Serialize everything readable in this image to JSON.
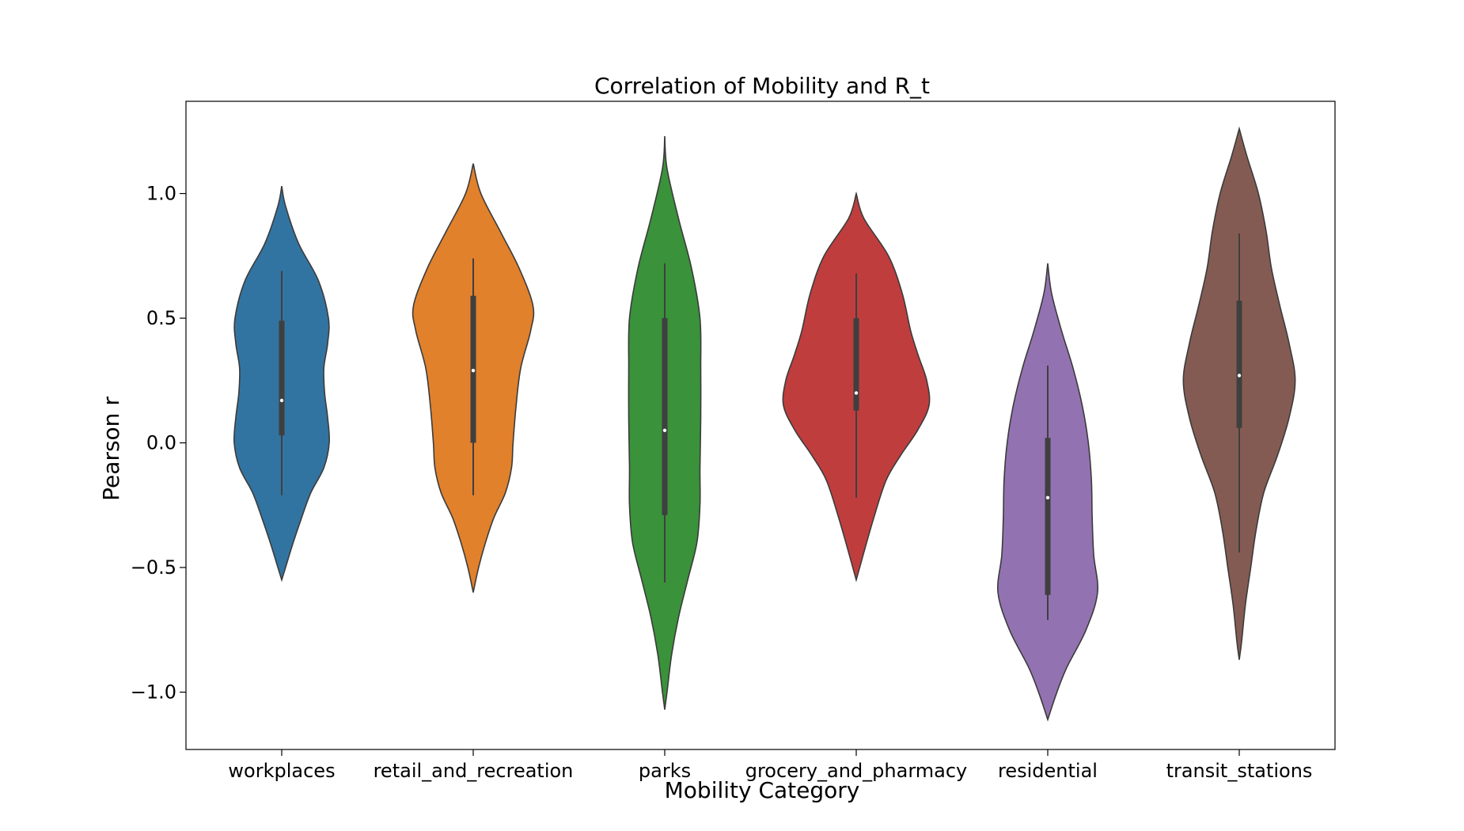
{
  "chart_data": {
    "type": "violin",
    "title": "Correlation of Mobility and R_t",
    "xlabel": "Mobility Category",
    "ylabel": "Pearson r",
    "ylim": [
      -1.23,
      1.37
    ],
    "yticks": [
      1.0,
      0.5,
      0.0,
      -0.5,
      -1.0
    ],
    "ytick_labels": [
      "1.0",
      "0.5",
      "0.0",
      "−0.5",
      "−1.0"
    ],
    "grid": false,
    "categories": [
      "workplaces",
      "retail_and_recreation",
      "parks",
      "grocery_and_pharmacy",
      "residential",
      "transit_stations"
    ],
    "series": [
      {
        "category": "workplaces",
        "color": "#3274a1",
        "density": [
          [
            1.03,
            0
          ],
          [
            0.95,
            0.05
          ],
          [
            0.8,
            0.22
          ],
          [
            0.65,
            0.48
          ],
          [
            0.5,
            0.61
          ],
          [
            0.4,
            0.6
          ],
          [
            0.3,
            0.55
          ],
          [
            0.2,
            0.56
          ],
          [
            0.1,
            0.6
          ],
          [
            0.0,
            0.62
          ],
          [
            -0.1,
            0.55
          ],
          [
            -0.2,
            0.38
          ],
          [
            -0.3,
            0.26
          ],
          [
            -0.4,
            0.15
          ],
          [
            -0.5,
            0.05
          ],
          [
            -0.55,
            0
          ]
        ],
        "whisker": [
          -0.21,
          0.69
        ],
        "box": [
          0.03,
          0.49
        ],
        "median": 0.17
      },
      {
        "category": "retail_and_recreation",
        "color": "#e1812c",
        "density": [
          [
            1.12,
            0
          ],
          [
            1.0,
            0.1
          ],
          [
            0.85,
            0.35
          ],
          [
            0.7,
            0.6
          ],
          [
            0.55,
            0.78
          ],
          [
            0.45,
            0.75
          ],
          [
            0.3,
            0.62
          ],
          [
            0.15,
            0.56
          ],
          [
            0.0,
            0.52
          ],
          [
            -0.1,
            0.5
          ],
          [
            -0.2,
            0.42
          ],
          [
            -0.3,
            0.27
          ],
          [
            -0.4,
            0.16
          ],
          [
            -0.5,
            0.07
          ],
          [
            -0.6,
            0
          ]
        ],
        "whisker": [
          -0.21,
          0.74
        ],
        "box": [
          0.0,
          0.59
        ],
        "median": 0.29
      },
      {
        "category": "parks",
        "color": "#3a923a",
        "density": [
          [
            1.23,
            0
          ],
          [
            1.1,
            0.03
          ],
          [
            0.9,
            0.18
          ],
          [
            0.7,
            0.35
          ],
          [
            0.5,
            0.46
          ],
          [
            0.3,
            0.47
          ],
          [
            0.1,
            0.47
          ],
          [
            -0.1,
            0.46
          ],
          [
            -0.25,
            0.46
          ],
          [
            -0.4,
            0.42
          ],
          [
            -0.55,
            0.3
          ],
          [
            -0.7,
            0.18
          ],
          [
            -0.85,
            0.09
          ],
          [
            -1.0,
            0.03
          ],
          [
            -1.07,
            0
          ]
        ],
        "whisker": [
          -0.56,
          0.72
        ],
        "box": [
          -0.29,
          0.5
        ],
        "median": 0.05
      },
      {
        "category": "grocery_and_pharmacy",
        "color": "#c03d3e",
        "density": [
          [
            1.0,
            0
          ],
          [
            0.9,
            0.1
          ],
          [
            0.75,
            0.42
          ],
          [
            0.6,
            0.6
          ],
          [
            0.45,
            0.71
          ],
          [
            0.35,
            0.81
          ],
          [
            0.25,
            0.92
          ],
          [
            0.15,
            0.95
          ],
          [
            0.05,
            0.8
          ],
          [
            -0.05,
            0.58
          ],
          [
            -0.15,
            0.39
          ],
          [
            -0.3,
            0.23
          ],
          [
            -0.45,
            0.09
          ],
          [
            -0.55,
            0
          ]
        ],
        "whisker": [
          -0.22,
          0.68
        ],
        "box": [
          0.13,
          0.5
        ],
        "median": 0.2
      },
      {
        "category": "residential",
        "color": "#9372b2",
        "density": [
          [
            0.72,
            0
          ],
          [
            0.6,
            0.05
          ],
          [
            0.45,
            0.18
          ],
          [
            0.3,
            0.33
          ],
          [
            0.15,
            0.45
          ],
          [
            0.0,
            0.53
          ],
          [
            -0.15,
            0.57
          ],
          [
            -0.3,
            0.58
          ],
          [
            -0.45,
            0.6
          ],
          [
            -0.6,
            0.65
          ],
          [
            -0.75,
            0.5
          ],
          [
            -0.9,
            0.25
          ],
          [
            -1.0,
            0.12
          ],
          [
            -1.11,
            0
          ]
        ],
        "whisker": [
          -0.71,
          0.31
        ],
        "box": [
          -0.61,
          0.02
        ],
        "median": -0.22
      },
      {
        "category": "transit_stations",
        "color": "#845b53",
        "density": [
          [
            1.26,
            0
          ],
          [
            1.15,
            0.1
          ],
          [
            1.0,
            0.25
          ],
          [
            0.85,
            0.35
          ],
          [
            0.7,
            0.42
          ],
          [
            0.55,
            0.53
          ],
          [
            0.4,
            0.65
          ],
          [
            0.25,
            0.73
          ],
          [
            0.1,
            0.65
          ],
          [
            -0.05,
            0.5
          ],
          [
            -0.2,
            0.32
          ],
          [
            -0.35,
            0.22
          ],
          [
            -0.5,
            0.15
          ],
          [
            -0.65,
            0.08
          ],
          [
            -0.8,
            0.03
          ],
          [
            -0.87,
            0
          ]
        ],
        "whisker": [
          -0.44,
          0.84
        ],
        "box": [
          0.06,
          0.57
        ],
        "median": 0.27
      }
    ]
  }
}
